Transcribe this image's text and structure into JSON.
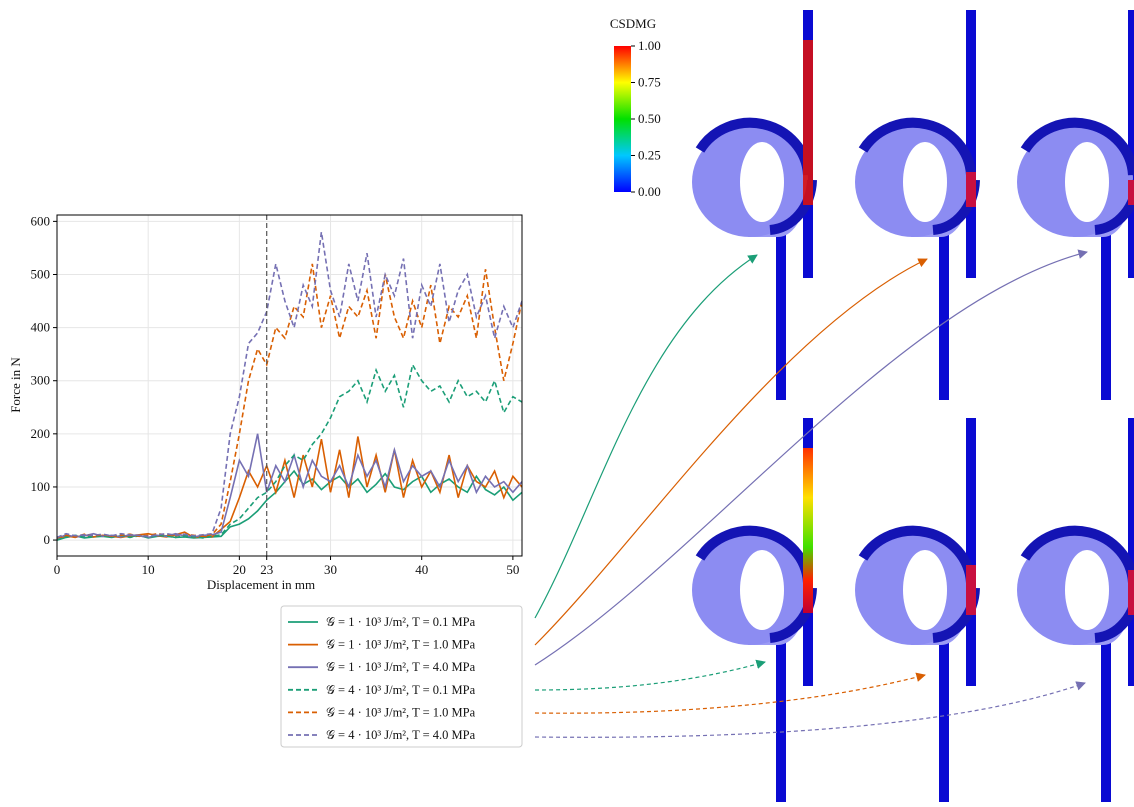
{
  "chart_data": {
    "type": "line",
    "xlabel": "Displacement in mm",
    "ylabel": "Force in N",
    "x": [
      0,
      1,
      2,
      3,
      4,
      5,
      6,
      7,
      8,
      9,
      10,
      11,
      12,
      13,
      14,
      15,
      16,
      17,
      18,
      19,
      20,
      21,
      22,
      23,
      24,
      25,
      26,
      27,
      28,
      29,
      30,
      31,
      32,
      33,
      34,
      35,
      36,
      37,
      38,
      39,
      40,
      41,
      42,
      43,
      44,
      45,
      46,
      47,
      48,
      49,
      50,
      51
    ],
    "xlim": [
      0,
      51
    ],
    "xticks": [
      0,
      10,
      20,
      23,
      30,
      40,
      50
    ],
    "ylim": [
      -30,
      612
    ],
    "yticks": [
      0,
      100,
      200,
      300,
      400,
      500,
      600
    ],
    "grid": true,
    "vline": 23,
    "legend": "below",
    "series": [
      {
        "name": "𝒢 = 1 · 10³ J/m², T = 0.1 MPa",
        "color": "#1b9e77",
        "linestyle": "solid",
        "values": [
          0,
          5,
          8,
          4,
          6,
          7,
          5,
          8,
          6,
          9,
          4,
          7,
          8,
          5,
          6,
          4,
          5,
          6,
          7,
          25,
          30,
          40,
          55,
          75,
          90,
          110,
          130,
          105,
          115,
          95,
          110,
          120,
          100,
          115,
          90,
          105,
          125,
          100,
          95,
          110,
          120,
          90,
          105,
          115,
          100,
          90,
          120,
          95,
          85,
          100,
          75,
          90
        ]
      },
      {
        "name": "𝒢 = 1 · 10³ J/m², T = 1.0 MPa",
        "color": "#d95f02",
        "linestyle": "solid",
        "values": [
          2,
          8,
          5,
          10,
          6,
          9,
          7,
          5,
          8,
          10,
          12,
          8,
          6,
          10,
          15,
          5,
          7,
          6,
          20,
          35,
          80,
          130,
          100,
          140,
          90,
          150,
          80,
          160,
          100,
          190,
          90,
          170,
          80,
          195,
          100,
          160,
          90,
          170,
          80,
          150,
          100,
          130,
          90,
          160,
          80,
          140,
          110,
          100,
          130,
          80,
          120,
          100
        ]
      },
      {
        "name": "𝒢 = 1 · 10³ J/m², T = 4.0 MPa",
        "color": "#7570b3",
        "linestyle": "solid",
        "values": [
          3,
          10,
          6,
          8,
          12,
          7,
          9,
          6,
          10,
          8,
          5,
          9,
          7,
          12,
          8,
          6,
          9,
          10,
          15,
          80,
          150,
          120,
          200,
          90,
          140,
          110,
          160,
          100,
          150,
          120,
          110,
          140,
          100,
          160,
          120,
          150,
          100,
          170,
          110,
          140,
          120,
          130,
          100,
          150,
          110,
          140,
          90,
          120,
          100,
          110,
          90,
          110
        ]
      },
      {
        "name": "𝒢 = 4 · 10³ J/m², T = 0.1 MPa",
        "color": "#1b9e77",
        "linestyle": "dashed",
        "values": [
          0,
          6,
          9,
          5,
          7,
          8,
          6,
          9,
          5,
          8,
          6,
          9,
          7,
          5,
          8,
          6,
          4,
          7,
          10,
          30,
          40,
          60,
          80,
          90,
          110,
          140,
          160,
          150,
          180,
          200,
          230,
          270,
          280,
          300,
          260,
          320,
          280,
          310,
          250,
          330,
          300,
          280,
          290,
          260,
          300,
          270,
          280,
          260,
          300,
          240,
          270,
          260
        ]
      },
      {
        "name": "𝒢 = 4 · 10³ J/m², T = 1.0 MPa",
        "color": "#d95f02",
        "linestyle": "dashed",
        "values": [
          4,
          9,
          6,
          11,
          8,
          10,
          7,
          9,
          11,
          7,
          9,
          12,
          10,
          8,
          11,
          9,
          8,
          10,
          30,
          110,
          200,
          300,
          360,
          330,
          400,
          380,
          440,
          420,
          520,
          400,
          460,
          380,
          440,
          420,
          470,
          380,
          500,
          420,
          380,
          450,
          400,
          480,
          370,
          440,
          420,
          460,
          380,
          510,
          400,
          300,
          370,
          450
        ]
      },
      {
        "name": "𝒢 = 4 · 10³ J/m², T = 4.0 MPa",
        "color": "#7570b3",
        "linestyle": "dashed",
        "values": [
          5,
          12,
          8,
          10,
          9,
          11,
          8,
          12,
          10,
          9,
          7,
          10,
          12,
          9,
          11,
          8,
          10,
          12,
          60,
          200,
          270,
          370,
          390,
          430,
          520,
          450,
          400,
          480,
          440,
          580,
          470,
          420,
          520,
          450,
          540,
          420,
          500,
          460,
          530,
          380,
          480,
          440,
          520,
          410,
          470,
          500,
          420,
          460,
          380,
          440,
          400,
          450
        ]
      }
    ]
  },
  "colorbar": {
    "title": "CSDMG",
    "lim": [
      0,
      1
    ],
    "ticks": [
      {
        "value": 1,
        "label": "1.00"
      },
      {
        "value": 0.75,
        "label": "0.75"
      },
      {
        "value": 0.5,
        "label": "0.50"
      },
      {
        "value": 0.25,
        "label": "0.25"
      },
      {
        "value": 0,
        "label": "0.00"
      }
    ]
  }
}
